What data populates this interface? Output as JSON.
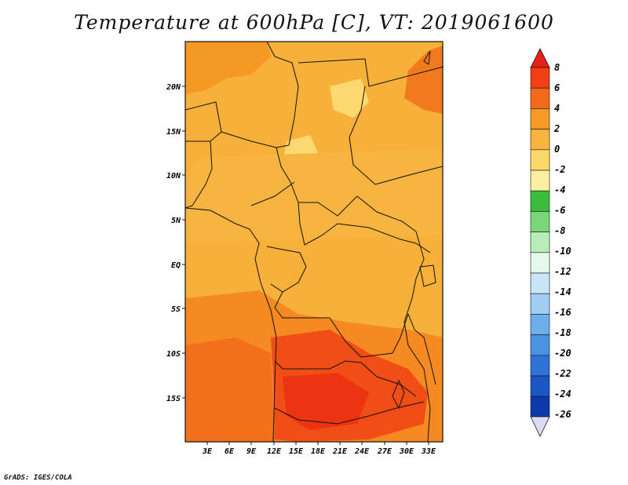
{
  "title": "Temperature at 600hPa [C], VT: 2019061600",
  "credit": "GrADS: IGES/COLA",
  "map": {
    "lat_labels": [
      "20N",
      "15N",
      "10N",
      "5N",
      "EQ",
      "5S",
      "10S",
      "15S"
    ],
    "lon_labels": [
      "3E",
      "6E",
      "9E",
      "12E",
      "15E",
      "18E",
      "21E",
      "24E",
      "27E",
      "30E",
      "33E"
    ]
  },
  "colorbar": {
    "labels": [
      "8",
      "6",
      "4",
      "2",
      "0",
      "-2",
      "-4",
      "-6",
      "-8",
      "-10",
      "-12",
      "-14",
      "-16",
      "-18",
      "-20",
      "-22",
      "-24",
      "-26"
    ],
    "colors": {
      "c8": "#e8201a",
      "c6": "#f23e14",
      "c4": "#f46a1c",
      "c2": "#f59a24",
      "c0": "#f8b43c",
      "cm2": "#fbd86a",
      "cm4": "#fcf0a0",
      "cm6": "#3cbc3c",
      "cm8": "#7ad67a",
      "cm10": "#b8ecb8",
      "cm12": "#e6f8ec",
      "cm14": "#c8e6f8",
      "cm16": "#a0cdf2",
      "cm18": "#6eaeea",
      "cm20": "#4a92e2",
      "cm22": "#2e74d6",
      "cm24": "#1a56c4",
      "cm26": "#0c3aa8",
      "below": "#111a6e",
      "under": "#dcdcf0"
    }
  }
}
